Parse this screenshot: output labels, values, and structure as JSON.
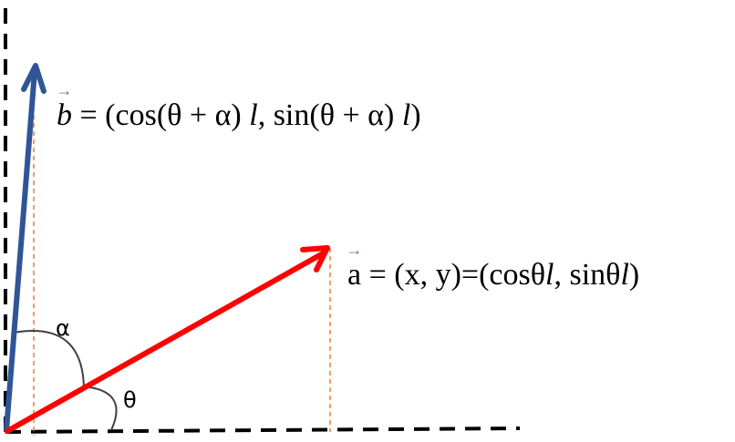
{
  "labels": {
    "alpha": "α",
    "theta": "θ"
  },
  "formula_b": {
    "vector_symbol": "b",
    "arrow": "→",
    "eq": " = (cos(θ + α) ",
    "l1": "l",
    "mid": ",   sin(θ + α) ",
    "l2": "l",
    "end": ")"
  },
  "formula_a": {
    "vector_symbol": "a",
    "arrow": "→",
    "eq": " = (x, y)=(cosθ",
    "l1": "l",
    "mid": ",   sinθ",
    "l2": "l",
    "end": ")"
  },
  "colors": {
    "vector_a": "#ff0000",
    "vector_b": "#2f5597",
    "projection": "#ed7d31",
    "axis": "#000000",
    "arc": "#404040"
  }
}
